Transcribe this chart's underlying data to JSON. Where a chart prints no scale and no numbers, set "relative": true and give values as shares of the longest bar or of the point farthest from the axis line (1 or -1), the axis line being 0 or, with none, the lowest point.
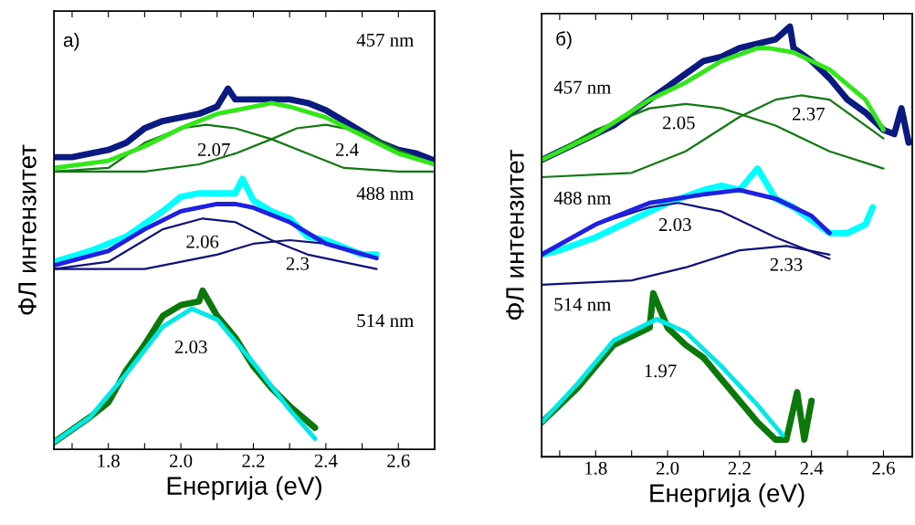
{
  "chart_data": [
    {
      "type": "line",
      "relative": true,
      "xlabel": "Енергија (eV)",
      "ylabel": "ФЛ интензитет",
      "xlim": [
        1.65,
        2.7
      ],
      "xticks": [
        {
          "value": 1.7,
          "label": null
        },
        {
          "value": 1.8,
          "label": "1.8"
        },
        {
          "value": 1.9,
          "label": null
        },
        {
          "value": 2.0,
          "label": "2.0"
        },
        {
          "value": 2.1,
          "label": null
        },
        {
          "value": 2.2,
          "label": "2.2"
        },
        {
          "value": 2.3,
          "label": null
        },
        {
          "value": 2.4,
          "label": "2.4"
        },
        {
          "value": 2.5,
          "label": null
        },
        {
          "value": 2.6,
          "label": "2.6"
        }
      ],
      "grid": false,
      "legend": false,
      "marker": "none",
      "line_style": "solid",
      "series": [
        {
          "color": "#0b1a80",
          "x": [
            1.65,
            1.7,
            1.75,
            1.8,
            1.85,
            1.9,
            1.95,
            2.0,
            2.05,
            2.1,
            2.13,
            2.15,
            2.2,
            2.25,
            2.3,
            2.35,
            2.4,
            2.45,
            2.5,
            2.55,
            2.6,
            2.65,
            2.7
          ],
          "values": [
            0.81,
            0.81,
            0.82,
            0.83,
            0.85,
            0.89,
            0.91,
            0.92,
            0.93,
            0.95,
            1.0,
            0.97,
            0.97,
            0.97,
            0.97,
            0.96,
            0.94,
            0.91,
            0.88,
            0.85,
            0.83,
            0.82,
            0.8
          ]
        },
        {
          "color": "#0f7a0f",
          "x": [
            1.65,
            1.8,
            1.9,
            2.0,
            2.07,
            2.15,
            2.25,
            2.35,
            2.45,
            2.6,
            2.7
          ],
          "values": [
            0.77,
            0.78,
            0.85,
            0.89,
            0.9,
            0.89,
            0.86,
            0.82,
            0.78,
            0.77,
            0.77
          ]
        },
        {
          "color": "#0f7a0f",
          "x": [
            1.65,
            1.9,
            2.05,
            2.15,
            2.25,
            2.32,
            2.4,
            2.5,
            2.6,
            2.7
          ],
          "values": [
            0.77,
            0.77,
            0.79,
            0.82,
            0.86,
            0.89,
            0.9,
            0.88,
            0.83,
            0.79
          ]
        },
        {
          "color": "#33e61a",
          "x": [
            1.65,
            1.8,
            1.9,
            2.0,
            2.1,
            2.2,
            2.25,
            2.3,
            2.4,
            2.5,
            2.6,
            2.7
          ],
          "values": [
            0.78,
            0.8,
            0.84,
            0.89,
            0.93,
            0.95,
            0.96,
            0.95,
            0.92,
            0.87,
            0.82,
            0.79
          ]
        },
        {
          "color": "#00ffff",
          "x": [
            1.65,
            1.75,
            1.85,
            1.95,
            2.0,
            2.05,
            2.1,
            2.15,
            2.17,
            2.2,
            2.25,
            2.3,
            2.35,
            2.4,
            2.45,
            2.5,
            2.54
          ],
          "values": [
            0.52,
            0.55,
            0.59,
            0.66,
            0.7,
            0.71,
            0.71,
            0.71,
            0.75,
            0.69,
            0.66,
            0.64,
            0.59,
            0.58,
            0.56,
            0.54,
            0.54
          ]
        },
        {
          "color": "#101080",
          "x": [
            1.65,
            1.8,
            1.95,
            2.06,
            2.15,
            2.25,
            2.35,
            2.54
          ],
          "values": [
            0.5,
            0.52,
            0.61,
            0.64,
            0.63,
            0.58,
            0.54,
            0.5
          ]
        },
        {
          "color": "#101080",
          "x": [
            1.65,
            1.9,
            2.1,
            2.2,
            2.3,
            2.4,
            2.54
          ],
          "values": [
            0.5,
            0.5,
            0.54,
            0.57,
            0.58,
            0.57,
            0.53
          ]
        },
        {
          "color": "#2020e0",
          "x": [
            1.65,
            1.8,
            1.9,
            2.0,
            2.1,
            2.15,
            2.2,
            2.3,
            2.4,
            2.54
          ],
          "values": [
            0.51,
            0.55,
            0.61,
            0.66,
            0.68,
            0.68,
            0.67,
            0.63,
            0.57,
            0.53
          ]
        },
        {
          "color": "#0a780a",
          "x": [
            1.65,
            1.75,
            1.8,
            1.85,
            1.9,
            1.95,
            2.0,
            2.05,
            2.06,
            2.1,
            2.15,
            2.2,
            2.25,
            2.3,
            2.37
          ],
          "values": [
            0.02,
            0.09,
            0.13,
            0.22,
            0.29,
            0.37,
            0.4,
            0.41,
            0.44,
            0.37,
            0.31,
            0.23,
            0.17,
            0.12,
            0.06
          ]
        },
        {
          "color": "#00e8e8",
          "x": [
            1.65,
            1.75,
            1.85,
            1.95,
            2.03,
            2.1,
            2.2,
            2.3,
            2.37
          ],
          "values": [
            0.02,
            0.09,
            0.21,
            0.34,
            0.39,
            0.36,
            0.24,
            0.11,
            0.03
          ]
        }
      ],
      "annotations": [
        "а)",
        "457 nm",
        "2.07",
        "2.4",
        "488 nm",
        "2.06",
        "2.3",
        "514 nm",
        "2.03"
      ]
    },
    {
      "type": "line",
      "relative": true,
      "xlabel": "Енергија (eV)",
      "ylabel": "ФЛ интензитет",
      "xlim": [
        1.65,
        2.68
      ],
      "xticks": [
        {
          "value": 1.7,
          "label": null
        },
        {
          "value": 1.8,
          "label": "1.8"
        },
        {
          "value": 1.9,
          "label": null
        },
        {
          "value": 2.0,
          "label": "2.0"
        },
        {
          "value": 2.1,
          "label": null
        },
        {
          "value": 2.2,
          "label": "2.2"
        },
        {
          "value": 2.3,
          "label": null
        },
        {
          "value": 2.4,
          "label": "2.4"
        },
        {
          "value": 2.5,
          "label": null
        },
        {
          "value": 2.6,
          "label": "2.6"
        }
      ],
      "grid": false,
      "legend": false,
      "marker": "none",
      "line_style": "solid",
      "series": [
        {
          "color": "#0b1a80",
          "x": [
            1.65,
            1.7,
            1.75,
            1.8,
            1.85,
            1.9,
            1.95,
            2.0,
            2.05,
            2.1,
            2.15,
            2.2,
            2.25,
            2.3,
            2.34,
            2.35,
            2.4,
            2.45,
            2.5,
            2.55,
            2.6,
            2.63,
            2.65,
            2.67
          ],
          "values": [
            0.69,
            0.71,
            0.73,
            0.75,
            0.77,
            0.8,
            0.83,
            0.86,
            0.89,
            0.92,
            0.93,
            0.95,
            0.96,
            0.97,
            1.0,
            0.95,
            0.92,
            0.88,
            0.83,
            0.8,
            0.76,
            0.75,
            0.81,
            0.73
          ]
        },
        {
          "color": "#0f7a0f",
          "x": [
            1.65,
            1.8,
            1.95,
            2.05,
            2.15,
            2.3,
            2.45,
            2.6
          ],
          "values": [
            0.69,
            0.76,
            0.81,
            0.82,
            0.81,
            0.77,
            0.71,
            0.67
          ]
        },
        {
          "color": "#0f7a0f",
          "x": [
            1.65,
            1.9,
            2.05,
            2.2,
            2.3,
            2.37,
            2.45,
            2.6
          ],
          "values": [
            0.65,
            0.66,
            0.71,
            0.79,
            0.83,
            0.84,
            0.83,
            0.74
          ]
        },
        {
          "color": "#33e61a",
          "x": [
            1.65,
            1.8,
            1.95,
            2.05,
            2.15,
            2.25,
            2.28,
            2.35,
            2.45,
            2.55,
            2.6
          ],
          "values": [
            0.69,
            0.75,
            0.83,
            0.87,
            0.92,
            0.95,
            0.95,
            0.94,
            0.9,
            0.83,
            0.76
          ]
        },
        {
          "color": "#00ffff",
          "x": [
            1.65,
            1.7,
            1.8,
            1.9,
            2.0,
            2.1,
            2.15,
            2.2,
            2.25,
            2.3,
            2.35,
            2.4,
            2.45,
            2.5,
            2.55,
            2.57
          ],
          "values": [
            0.47,
            0.48,
            0.51,
            0.55,
            0.59,
            0.62,
            0.63,
            0.62,
            0.67,
            0.6,
            0.58,
            0.55,
            0.52,
            0.52,
            0.54,
            0.58
          ]
        },
        {
          "color": "#101080",
          "x": [
            1.65,
            1.8,
            1.95,
            2.03,
            2.15,
            2.3,
            2.45
          ],
          "values": [
            0.47,
            0.54,
            0.58,
            0.59,
            0.57,
            0.51,
            0.46
          ]
        },
        {
          "color": "#101080",
          "x": [
            1.65,
            1.9,
            2.05,
            2.2,
            2.33,
            2.45
          ],
          "values": [
            0.4,
            0.41,
            0.44,
            0.48,
            0.49,
            0.47
          ]
        },
        {
          "color": "#2020e0",
          "x": [
            1.65,
            1.8,
            1.95,
            2.1,
            2.2,
            2.3,
            2.4,
            2.45
          ],
          "values": [
            0.47,
            0.54,
            0.59,
            0.61,
            0.62,
            0.6,
            0.56,
            0.52
          ]
        },
        {
          "color": "#0a780a",
          "x": [
            1.65,
            1.7,
            1.75,
            1.8,
            1.85,
            1.9,
            1.95,
            1.96,
            2.0,
            2.05,
            2.1,
            2.15,
            2.2,
            2.25,
            2.3,
            2.33,
            2.36,
            2.38,
            2.4
          ],
          "values": [
            0.08,
            0.12,
            0.16,
            0.21,
            0.26,
            0.28,
            0.3,
            0.38,
            0.3,
            0.26,
            0.23,
            0.18,
            0.13,
            0.08,
            0.04,
            0.04,
            0.15,
            0.04,
            0.13
          ]
        },
        {
          "color": "#00e8e8",
          "x": [
            1.65,
            1.75,
            1.85,
            1.97,
            2.05,
            2.15,
            2.25,
            2.32
          ],
          "values": [
            0.08,
            0.17,
            0.27,
            0.32,
            0.29,
            0.21,
            0.12,
            0.05
          ]
        }
      ],
      "annotations": [
        "б)",
        "457 nm",
        "2.05",
        "2.37",
        "488 nm",
        "2.03",
        "2.33",
        "514 nm",
        "1.97"
      ]
    }
  ]
}
